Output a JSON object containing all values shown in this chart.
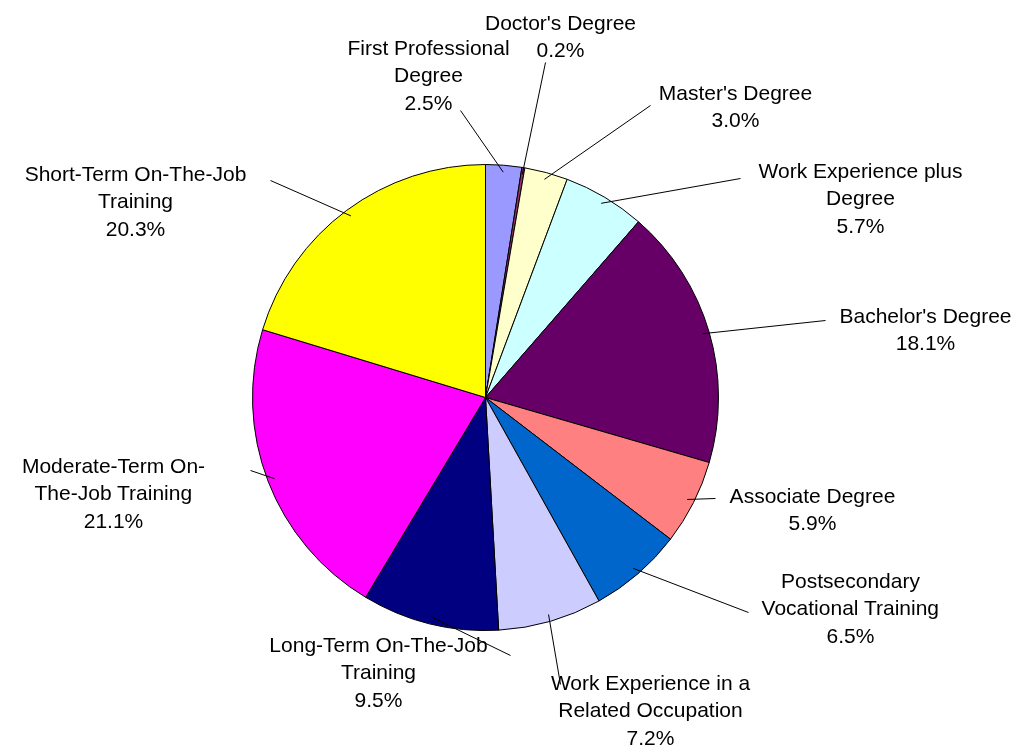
{
  "chart_data": {
    "type": "pie",
    "categories": [
      "First Professional\nDegree",
      "Doctor's Degree",
      "Master's Degree",
      "Work Experience plus\nDegree",
      "Bachelor's Degree",
      "Associate Degree",
      "Postsecondary\nVocational Training",
      "Work Experience in a\nRelated Occupation",
      "Long-Term On-The-Job\nTraining",
      "Moderate-Term On-\nThe-Job Training",
      "Short-Term On-The-Job\nTraining"
    ],
    "values": [
      2.5,
      0.2,
      3.0,
      5.7,
      18.1,
      5.9,
      6.5,
      7.2,
      9.5,
      21.1,
      20.3
    ],
    "value_labels": [
      "2.5%",
      "0.2%",
      "3.0%",
      "5.7%",
      "18.1%",
      "5.9%",
      "6.5%",
      "7.2%",
      "9.5%",
      "21.1%",
      "20.3%"
    ],
    "colors": [
      "#9999ff",
      "#993366",
      "#ffffcc",
      "#ccffff",
      "#660066",
      "#ff8080",
      "#0066cc",
      "#ccccff",
      "#000080",
      "#ff00ff",
      "#ffff00"
    ]
  }
}
